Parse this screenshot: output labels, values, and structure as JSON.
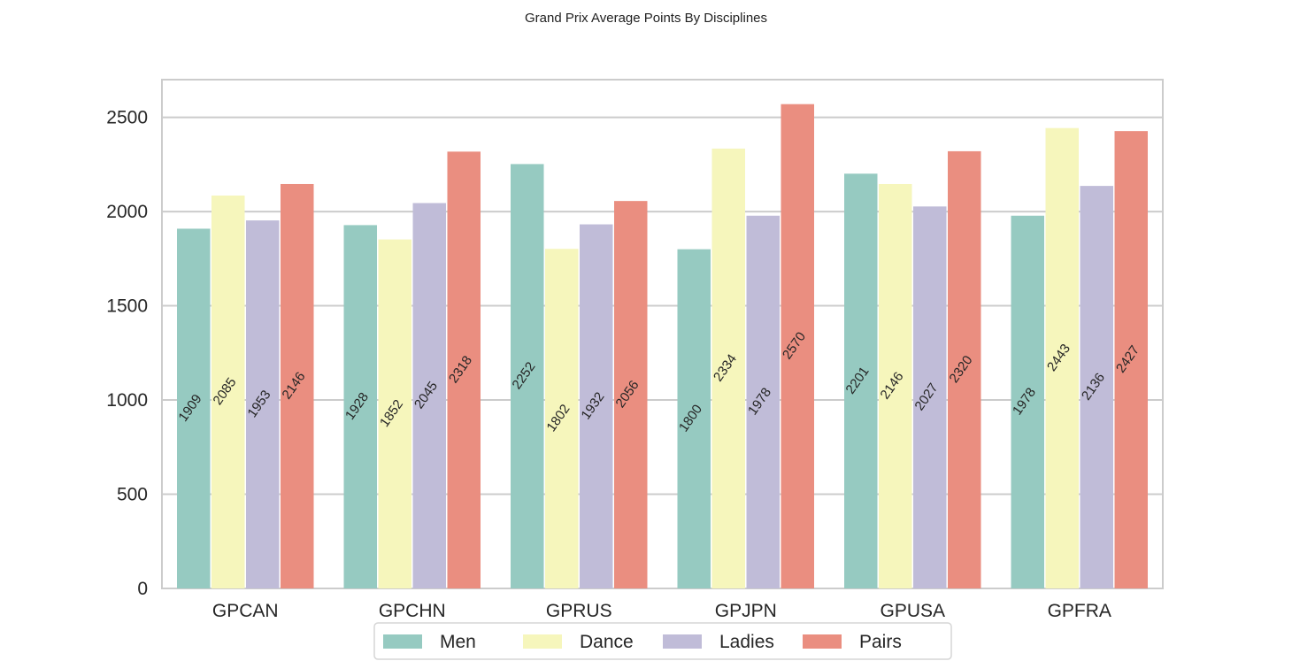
{
  "chart_data": {
    "type": "bar",
    "title": "Grand Prix Average Points By Disciplines",
    "xlabel": "",
    "ylabel": "",
    "categories": [
      "GPCAN",
      "GPCHN",
      "GPRUS",
      "GPJPN",
      "GPUSA",
      "GPFRA"
    ],
    "series": [
      {
        "name": "Men",
        "color": "#96cac1",
        "values": [
          1909,
          1928,
          2252,
          1800,
          2201,
          1978
        ]
      },
      {
        "name": "Dance",
        "color": "#f6f6bc",
        "values": [
          2085,
          1852,
          1802,
          2334,
          2146,
          2443
        ]
      },
      {
        "name": "Ladies",
        "color": "#c0bcd8",
        "values": [
          1953,
          2045,
          1932,
          1978,
          2027,
          2136
        ]
      },
      {
        "name": "Pairs",
        "color": "#ea8e80",
        "values": [
          2146,
          2318,
          2056,
          2570,
          2320,
          2427
        ]
      }
    ],
    "yticks": [
      0,
      500,
      1000,
      1500,
      2000,
      2500
    ],
    "ylim": [
      0,
      2700
    ],
    "grid": true,
    "legend_position": "bottom-center",
    "data_labels": true
  }
}
